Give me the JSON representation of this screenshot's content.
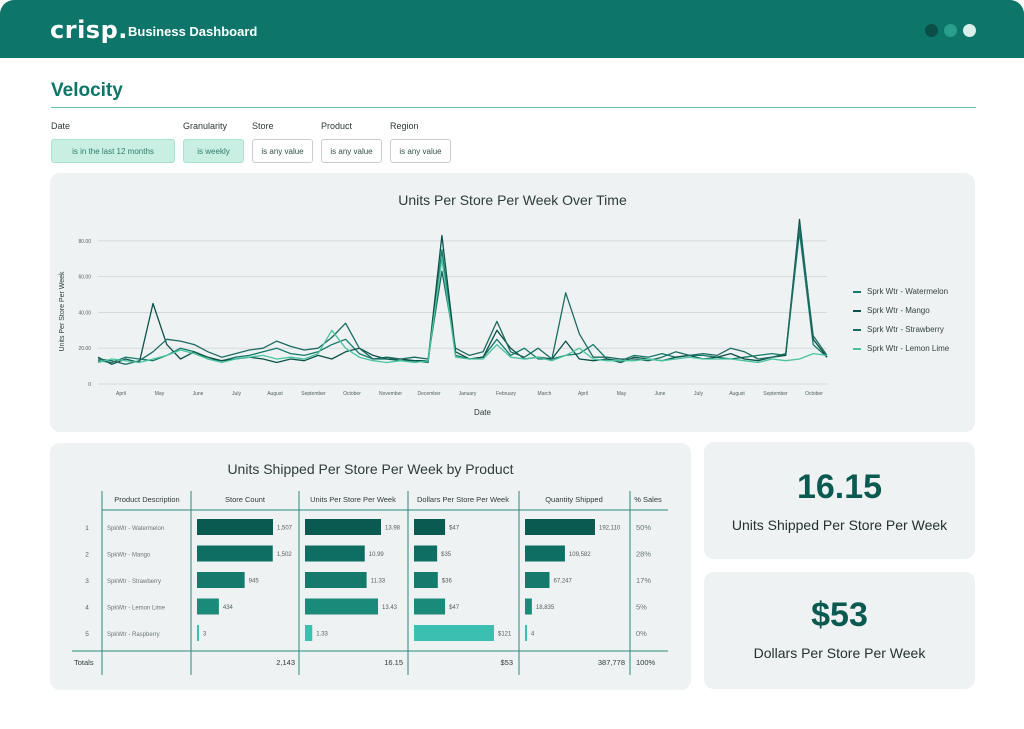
{
  "header": {
    "logo": "crisp.",
    "title": "Business Dashboard",
    "window_dots": [
      "#0a4f47",
      "#2a9f8d",
      "#d9efe9"
    ]
  },
  "page": {
    "title": "Velocity"
  },
  "filters": [
    {
      "label": "Date",
      "value": "is in the last 12 months",
      "active": true
    },
    {
      "label": "Granularity",
      "value": "is weekly",
      "active": true
    },
    {
      "label": "Store",
      "value": "is any value",
      "active": false
    },
    {
      "label": "Product",
      "value": "is any value",
      "active": false
    },
    {
      "label": "Region",
      "value": "is any value",
      "active": false
    }
  ],
  "chart_data": [
    {
      "type": "line",
      "title": "Units Per Store Per Week Over Time",
      "xlabel": "Date",
      "ylabel": "Units Per Store Per Week",
      "yticks": [
        "0",
        "20.00",
        "40.00",
        "60.00",
        "80.00"
      ],
      "ylim": [
        0,
        90
      ],
      "xticks": [
        "April",
        "May",
        "June",
        "July",
        "August",
        "September",
        "October",
        "November",
        "December",
        "January",
        "February",
        "March",
        "April",
        "May",
        "June",
        "July",
        "August",
        "September",
        "October"
      ],
      "grid": true,
      "legend": "right",
      "series": [
        {
          "name": "Sprk Wtr - Watermelon",
          "color": "#137a6c",
          "values": [
            13,
            12,
            15,
            14,
            13,
            16,
            20,
            18,
            14,
            13,
            15,
            16,
            18,
            20,
            17,
            16,
            18,
            22,
            25,
            17,
            14,
            14,
            13,
            13,
            12,
            75,
            16,
            14,
            15,
            25,
            16,
            20,
            14,
            14,
            16,
            17,
            22,
            14,
            13,
            16,
            15,
            17,
            15,
            16,
            16,
            15,
            14,
            15,
            16,
            17,
            16,
            85,
            22,
            15
          ]
        },
        {
          "name": "Sprk Wtr - Mango",
          "color": "#0c5148",
          "values": [
            15,
            11,
            14,
            12,
            45,
            22,
            14,
            18,
            15,
            13,
            14,
            15,
            14,
            12,
            14,
            13,
            16,
            14,
            18,
            20,
            16,
            14,
            14,
            13,
            13,
            83,
            18,
            14,
            15,
            30,
            20,
            14,
            15,
            14,
            24,
            14,
            13,
            14,
            12,
            15,
            14,
            13,
            15,
            16,
            14,
            15,
            17,
            14,
            13,
            15,
            16,
            92,
            25,
            15
          ]
        },
        {
          "name": "Sprk Wtr - Strawberry",
          "color": "#1c6b62",
          "values": [
            14,
            13,
            11,
            13,
            18,
            25,
            24,
            22,
            18,
            15,
            17,
            19,
            20,
            24,
            21,
            19,
            20,
            26,
            34,
            20,
            14,
            15,
            14,
            15,
            14,
            63,
            20,
            16,
            18,
            35,
            18,
            15,
            20,
            14,
            51,
            28,
            15,
            15,
            14,
            14,
            13,
            15,
            18,
            16,
            17,
            16,
            20,
            18,
            14,
            15,
            17,
            89,
            27,
            16
          ]
        },
        {
          "name": "Sprk Wtr - Lemon Lime",
          "color": "#49c49f",
          "values": [
            12,
            14,
            13,
            12,
            14,
            16,
            19,
            17,
            14,
            12,
            14,
            15,
            16,
            14,
            15,
            14,
            17,
            30,
            20,
            15,
            13,
            12,
            13,
            12,
            13,
            70,
            15,
            14,
            14,
            22,
            15,
            14,
            15,
            13,
            16,
            20,
            14,
            13,
            13,
            13,
            14,
            13,
            14,
            15,
            14,
            14,
            14,
            13,
            12,
            14,
            13,
            14,
            17,
            16
          ]
        }
      ]
    },
    {
      "type": "table",
      "title": "Units Shipped Per Store Per Week by Product",
      "columns": [
        "Product Description",
        "Store Count",
        "Units Per Store Per Week",
        "Dollars Per Store Per Week",
        "Quantity Shipped",
        "% Sales"
      ],
      "rows": [
        {
          "rank": "1",
          "product": "SpkWtr - Watermelon",
          "store_count": 1507,
          "store_count_label": "1,507",
          "upspw": 13.98,
          "upspw_label": "13.98",
          "dpspw": 47,
          "dpspw_label": "$47",
          "qty": 192110,
          "qty_label": "192,110",
          "pct": "50%"
        },
        {
          "rank": "2",
          "product": "SpkWtr - Mango",
          "store_count": 1502,
          "store_count_label": "1,502",
          "upspw": 10.99,
          "upspw_label": "10.99",
          "dpspw": 35,
          "dpspw_label": "$35",
          "qty": 109582,
          "qty_label": "109,582",
          "pct": "28%"
        },
        {
          "rank": "3",
          "product": "SpkWtr - Strawberry",
          "store_count": 945,
          "store_count_label": "945",
          "upspw": 11.33,
          "upspw_label": "11.33",
          "dpspw": 36,
          "dpspw_label": "$36",
          "qty": 67247,
          "qty_label": "67,247",
          "pct": "17%"
        },
        {
          "rank": "4",
          "product": "SpkWtr - Lemon Lime",
          "store_count": 434,
          "store_count_label": "434",
          "upspw": 13.43,
          "upspw_label": "13.43",
          "dpspw": 47,
          "dpspw_label": "$47",
          "qty": 18835,
          "qty_label": "18,835",
          "pct": "5%"
        },
        {
          "rank": "5",
          "product": "SpkWtr - Raspberry",
          "store_count": 3,
          "store_count_label": "3",
          "upspw": 1.33,
          "upspw_label": "1.33",
          "dpspw": 121,
          "dpspw_label": "$121",
          "qty": 4,
          "qty_label": "4",
          "pct": "0%"
        }
      ],
      "totals": {
        "label": "Totals",
        "store_count": "2,143",
        "upspw": "16.15",
        "dpspw": "$53",
        "qty": "387,778",
        "pct": "100%"
      },
      "bar_colors": [
        "#0b5a52",
        "#0e6e63",
        "#137a6c",
        "#1a8a7a",
        "#3bbfb1"
      ]
    }
  ],
  "kpis": [
    {
      "value": "16.15",
      "label": "Units Shipped Per Store Per Week"
    },
    {
      "value": "$53",
      "label": "Dollars Per Store Per Week"
    }
  ]
}
